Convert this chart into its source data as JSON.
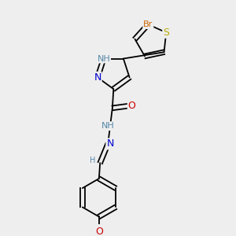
{
  "bg_color": "#eeeeee",
  "atom_colors": {
    "C": "#000000",
    "N": "#0000cc",
    "NH": "#5588aa",
    "O": "#cc0000",
    "S": "#bbaa00",
    "Br": "#cc6600",
    "H": "#5588aa"
  },
  "bond_color": "#000000",
  "font_size": 8,
  "figsize": [
    3.0,
    3.0
  ],
  "dpi": 100
}
